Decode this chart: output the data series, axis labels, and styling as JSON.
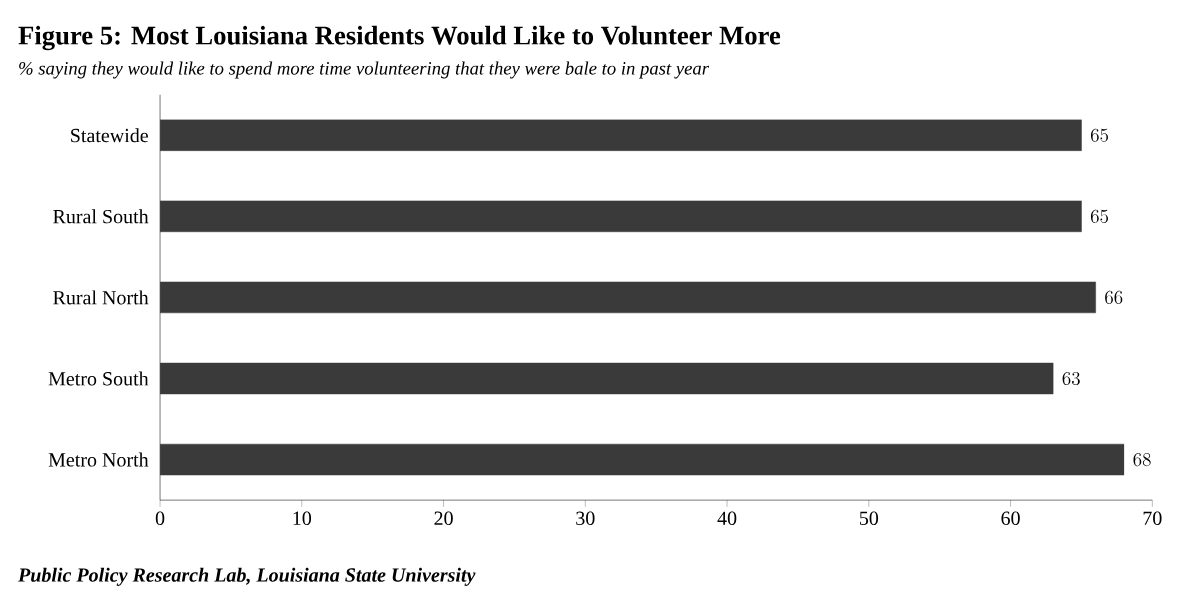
{
  "chart_data": {
    "type": "bar",
    "orientation": "horizontal",
    "title": "Figure 5: Most Louisiana Residents Would Like to Volunteer More",
    "subtitle": "% saying they would like to spend more time volunteering that they were bale to in past year",
    "categories": [
      "Statewide",
      "Rural South",
      "Rural North",
      "Metro South",
      "Metro North"
    ],
    "values": [
      65,
      65,
      66,
      63,
      68
    ],
    "color": "#3a3a3a",
    "xlim": [
      0,
      70
    ],
    "xticks": [
      0,
      10,
      20,
      30,
      40,
      50,
      60,
      70
    ],
    "data_labels": true,
    "annotations": [
      "Public Policy Research Lab, Louisiana State University"
    ]
  }
}
